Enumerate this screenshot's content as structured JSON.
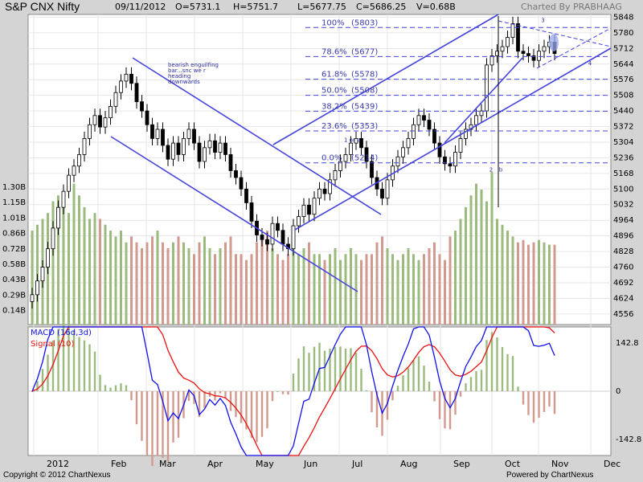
{
  "header": {
    "symbol": "S&P CNX Nifty",
    "date": "09/11/2012",
    "open": "O=5731.1",
    "high": "H=5751.7",
    "low": "L=5677.75",
    "close": "C=5686.25",
    "volume": "V=0.68B",
    "charted_by": "Charted By PRABHAAG"
  },
  "footer": {
    "copyright": "Copyright © 2012 ChartNexus",
    "powered_by": "Powered by ChartNexus"
  },
  "colors": {
    "background": "#ffffff",
    "bullish_volume": "#9bbb7e",
    "bearish_volume": "#d29a8f",
    "trendline": "#4444dd",
    "macd": "#1010ee",
    "signal": "#ee1010",
    "highlight": "#9aa8ee"
  },
  "chart_data": [
    {
      "type": "candlestick",
      "name": "price",
      "ylim": [
        4510,
        5860
      ],
      "y_ticks": [
        5848,
        5780,
        5712,
        5644,
        5576,
        5508,
        5440,
        5372,
        5304,
        5236,
        5168,
        5100,
        5032,
        4964,
        4896,
        4828,
        4760,
        4692,
        4624,
        4556
      ],
      "x_ticks": [
        "2012",
        "Feb",
        "Mar",
        "Apr",
        "May",
        "Jun",
        "Jul",
        "Aug",
        "Sep",
        "Oct",
        "Nov",
        "Dec"
      ],
      "fib_levels": [
        {
          "label": "100%",
          "value": "(5803)",
          "level": 5803
        },
        {
          "label": "78.6%",
          "value": "(5677)",
          "level": 5677
        },
        {
          "label": "61.8%",
          "value": "(5578)",
          "level": 5578
        },
        {
          "label": "50.0%",
          "value": "(5508)",
          "level": 5508
        },
        {
          "label": "38.2%",
          "value": "(5439)",
          "level": 5439
        },
        {
          "label": "23.6%",
          "value": "(5353)",
          "level": 5353
        },
        {
          "label": "0.0%",
          "value": "(5214)",
          "level": 5214
        }
      ],
      "annotations": [
        {
          "text": "bearish enguilfing",
          "month": 2.45,
          "price": 5632
        },
        {
          "text": "bar...snc  we r",
          "month": 2.45,
          "price": 5608
        },
        {
          "text": "heading",
          "month": 2.45,
          "price": 5584
        },
        {
          "text": "downwards",
          "month": 2.45,
          "price": 5560
        },
        {
          "text": "1 or a",
          "month": 6.1,
          "price": 5306
        },
        {
          "text": "2",
          "month": 8.95,
          "price": 5176
        },
        {
          "text": "b",
          "month": 9.15,
          "price": 5176
        },
        {
          "text": "3",
          "month": 10.05,
          "price": 5826
        },
        {
          "text": "4",
          "month": 10.95,
          "price": 5640
        }
      ],
      "closes": [
        4640,
        4700,
        4760,
        4840,
        4930,
        5020,
        5090,
        5160,
        5200,
        5250,
        5320,
        5380,
        5420,
        5370,
        5410,
        5460,
        5520,
        5570,
        5600,
        5560,
        5480,
        5440,
        5380,
        5320,
        5360,
        5290,
        5230,
        5300,
        5250,
        5320,
        5360,
        5300,
        5220,
        5280,
        5310,
        5260,
        5300,
        5250,
        5180,
        5150,
        5100,
        5040,
        4960,
        4900,
        4880,
        4860,
        4950,
        4920,
        4860,
        4840,
        4940,
        4980,
        5030,
        4990,
        5060,
        5100,
        5080,
        5140,
        5180,
        5220,
        5250,
        5300,
        5320,
        5280,
        5220,
        5150,
        5100,
        5060,
        5140,
        5200,
        5240,
        5280,
        5320,
        5380,
        5420,
        5400,
        5360,
        5300,
        5240,
        5210,
        5200,
        5260,
        5320,
        5360,
        5380,
        5420,
        5440,
        5640,
        5680,
        5700,
        5720,
        5760,
        5820,
        5700,
        5690,
        5680,
        5660,
        5700,
        5720,
        5740,
        5690
      ],
      "volumes": [
        0.8,
        0.85,
        0.9,
        0.95,
        1.05,
        1.1,
        1.0,
        0.95,
        1.2,
        1.1,
        1.0,
        0.9,
        0.95,
        0.9,
        0.85,
        0.8,
        0.75,
        0.8,
        0.7,
        0.75,
        0.7,
        0.65,
        0.7,
        0.75,
        0.8,
        0.7,
        0.65,
        0.7,
        0.75,
        0.7,
        0.65,
        0.6,
        0.7,
        0.75,
        0.65,
        0.6,
        0.65,
        0.7,
        0.75,
        0.6,
        0.6,
        0.55,
        0.6,
        0.7,
        0.75,
        0.8,
        0.65,
        0.6,
        0.55,
        0.6,
        0.65,
        0.6,
        0.65,
        0.7,
        0.6,
        0.6,
        0.55,
        0.6,
        0.65,
        0.55,
        0.6,
        0.65,
        0.6,
        0.55,
        0.6,
        0.6,
        0.7,
        0.75,
        0.65,
        0.6,
        0.55,
        0.6,
        0.65,
        0.6,
        0.55,
        0.6,
        0.65,
        0.7,
        0.6,
        0.55,
        0.75,
        0.8,
        0.9,
        1.0,
        1.1,
        1.2,
        1.15,
        1.05,
        1.3,
        0.9,
        0.85,
        0.8,
        0.75,
        0.7,
        0.72,
        0.68,
        0.7,
        0.72,
        0.7,
        0.68,
        0.68
      ]
    },
    {
      "type": "line",
      "name": "volume",
      "y_ticks": [
        "1.30B",
        "1.15B",
        "1.01B",
        "0.86B",
        "0.72B",
        "0.58B",
        "0.43B",
        "0.29B",
        "0.14B"
      ]
    },
    {
      "type": "line",
      "name": "macd",
      "series": [
        {
          "name": "MACD (16d,3d)"
        },
        {
          "name": "Signal (10)"
        }
      ],
      "y_ticks": [
        "142.8",
        "0",
        "-142.8"
      ],
      "ylim": [
        -190,
        190
      ]
    }
  ]
}
